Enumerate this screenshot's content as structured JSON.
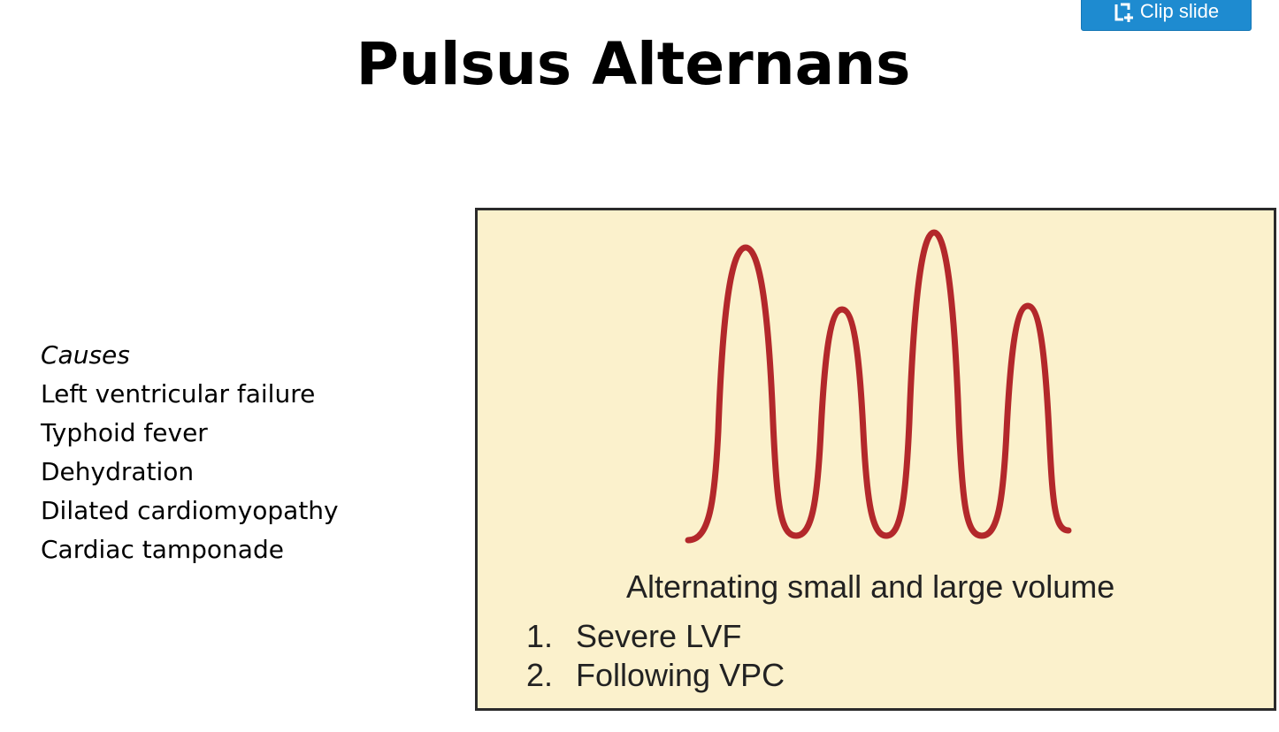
{
  "toolbar": {
    "clip_label": "Clip slide",
    "clip_icon": "clip-slide-icon",
    "accent_color": "#1e8bd0"
  },
  "slide": {
    "title": "Pulsus Alternans",
    "causes": {
      "heading": "Causes",
      "items": [
        "Left ventricular failure",
        "Typhoid fever",
        "Dehydration",
        "Dilated cardiomyopathy",
        "Cardiac tamponade"
      ]
    },
    "figure": {
      "background_color": "#fbf1cc",
      "wave_color": "#b3282b",
      "caption": "Alternating small and large volume",
      "list": [
        {
          "num": "1.",
          "text": "Severe LVF"
        },
        {
          "num": "2.",
          "text": "Following VPC"
        }
      ]
    }
  }
}
